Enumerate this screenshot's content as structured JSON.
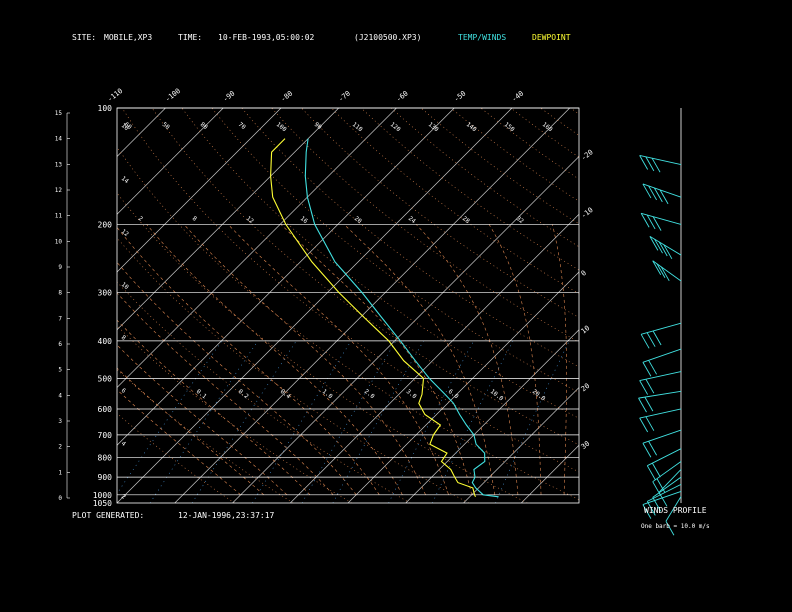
{
  "header": {
    "site_label": "SITE:",
    "site_value": "MOBILE,XP3",
    "time_label": "TIME:",
    "time_value": "10-FEB-1993,05:00:02",
    "file": "(J2100500.XP3)",
    "legend_temp": "TEMP/WINDS",
    "legend_dew": "DEWPOINT"
  },
  "footer": {
    "generated_label": "PLOT GENERATED:",
    "generated_value": "12-JAN-1996,23:37:17",
    "winds_title": "WINDS PROFILE",
    "winds_scale": "One barb = 10.0 m/s"
  },
  "colors": {
    "temp": "#40e0e0",
    "dew": "#ffff33",
    "grid": "#ffffff",
    "isotherm": "#c8c8c8",
    "dry_adiabat": "#e08850",
    "moist_adiabat": "#e08850",
    "mixing_ratio": "#4a9be0",
    "barb": "#40e0e0"
  },
  "chart_data": {
    "type": "line",
    "chart_kind": "skew-T log-P diagram",
    "pressure_ticks": [
      {
        "p": 100,
        "label": "100"
      },
      {
        "p": 200,
        "label": "200"
      },
      {
        "p": 300,
        "label": "300"
      },
      {
        "p": 400,
        "label": "400"
      },
      {
        "p": 500,
        "label": "500"
      },
      {
        "p": 600,
        "label": "600"
      },
      {
        "p": 700,
        "label": "700"
      },
      {
        "p": 800,
        "label": "800"
      },
      {
        "p": 900,
        "label": "900"
      },
      {
        "p": 1000,
        "label": "1000"
      },
      {
        "p": 1050,
        "label": "1050"
      }
    ],
    "height_ticks": [
      "0",
      "1",
      "2",
      "3",
      "4",
      "5",
      "6",
      "7",
      "8",
      "9",
      "10",
      "11",
      "12",
      "13",
      "14",
      "15"
    ],
    "top_temp_labels": [
      "-110",
      "-100",
      "-90",
      "-80",
      "-70",
      "-60",
      "-50",
      "-40"
    ],
    "right_temp_labels": [
      "-30",
      "-20",
      "-10",
      "0",
      "10",
      "20",
      "30"
    ],
    "dry_adiabat_labels": [
      "60",
      "50",
      "80",
      "70",
      "100",
      "90",
      "110",
      "120",
      "130",
      "140",
      "150",
      "160"
    ],
    "moist_adiabat_labels": [
      "2",
      "8",
      "12",
      "16",
      "20",
      "24",
      "28",
      "32"
    ],
    "mixing_ratio_labels": [
      "0.1",
      "0.2",
      "0.4",
      "1.0",
      "2.0",
      "3.0",
      "6.0",
      "10.0",
      "20.0"
    ],
    "height_side_labels": [
      "16",
      "14",
      "12",
      "10",
      "8",
      "6",
      "4",
      "2"
    ],
    "temperature_profile": [
      {
        "p": 1012,
        "t": 25.0
      },
      {
        "p": 1000,
        "t": 22.0
      },
      {
        "p": 960,
        "t": 19.5
      },
      {
        "p": 930,
        "t": 18.0
      },
      {
        "p": 900,
        "t": 17.5
      },
      {
        "p": 860,
        "t": 16.0
      },
      {
        "p": 820,
        "t": 16.5
      },
      {
        "p": 780,
        "t": 15.0
      },
      {
        "p": 740,
        "t": 12.0
      },
      {
        "p": 700,
        "t": 10.0
      },
      {
        "p": 660,
        "t": 7.0
      },
      {
        "p": 620,
        "t": 4.0
      },
      {
        "p": 580,
        "t": 1.0
      },
      {
        "p": 550,
        "t": -2.0
      },
      {
        "p": 500,
        "t": -7.5
      },
      {
        "p": 450,
        "t": -13.0
      },
      {
        "p": 400,
        "t": -19.0
      },
      {
        "p": 350,
        "t": -26.0
      },
      {
        "p": 300,
        "t": -34.0
      },
      {
        "p": 250,
        "t": -44.0
      },
      {
        "p": 200,
        "t": -54.0
      },
      {
        "p": 170,
        "t": -60.0
      },
      {
        "p": 150,
        "t": -64.0
      },
      {
        "p": 130,
        "t": -68.0
      },
      {
        "p": 120,
        "t": -70.0
      }
    ],
    "dewpoint_profile": [
      {
        "p": 1012,
        "t": 21.0
      },
      {
        "p": 1000,
        "t": 20.5
      },
      {
        "p": 960,
        "t": 19.0
      },
      {
        "p": 930,
        "t": 15.5
      },
      {
        "p": 900,
        "t": 14.0
      },
      {
        "p": 860,
        "t": 12.0
      },
      {
        "p": 820,
        "t": 9.0
      },
      {
        "p": 780,
        "t": 8.5
      },
      {
        "p": 740,
        "t": 4.0
      },
      {
        "p": 700,
        "t": 3.0
      },
      {
        "p": 660,
        "t": 2.5
      },
      {
        "p": 620,
        "t": -2.0
      },
      {
        "p": 580,
        "t": -5.0
      },
      {
        "p": 550,
        "t": -6.0
      },
      {
        "p": 500,
        "t": -8.5
      },
      {
        "p": 450,
        "t": -15.0
      },
      {
        "p": 400,
        "t": -21.0
      },
      {
        "p": 350,
        "t": -29.0
      },
      {
        "p": 300,
        "t": -38.0
      },
      {
        "p": 250,
        "t": -48.0
      },
      {
        "p": 200,
        "t": -59.0
      },
      {
        "p": 170,
        "t": -66.0
      },
      {
        "p": 150,
        "t": -70.0
      },
      {
        "p": 130,
        "t": -74.0
      },
      {
        "p": 120,
        "t": -74.0
      }
    ],
    "wind_profile": [
      {
        "p": 140,
        "speed": 25,
        "dir": 290
      },
      {
        "p": 170,
        "speed": 35,
        "dir": 300
      },
      {
        "p": 200,
        "speed": 30,
        "dir": 295
      },
      {
        "p": 240,
        "speed": 40,
        "dir": 315
      },
      {
        "p": 280,
        "speed": 25,
        "dir": 320
      },
      {
        "p": 360,
        "speed": 25,
        "dir": 245
      },
      {
        "p": 420,
        "speed": 20,
        "dir": 240
      },
      {
        "p": 480,
        "speed": 20,
        "dir": 250
      },
      {
        "p": 540,
        "speed": 20,
        "dir": 255
      },
      {
        "p": 600,
        "speed": 20,
        "dir": 250
      },
      {
        "p": 680,
        "speed": 20,
        "dir": 240
      },
      {
        "p": 760,
        "speed": 15,
        "dir": 230
      },
      {
        "p": 820,
        "speed": 15,
        "dir": 220
      },
      {
        "p": 860,
        "speed": 10,
        "dir": 210
      },
      {
        "p": 900,
        "speed": 10,
        "dir": 220
      },
      {
        "p": 940,
        "speed": 10,
        "dir": 230
      },
      {
        "p": 980,
        "speed": 10,
        "dir": 240
      },
      {
        "p": 1010,
        "speed": 5,
        "dir": 200
      }
    ],
    "axes": {
      "p_range": [
        100,
        1050
      ],
      "t_range_bottom": [
        -40,
        40
      ]
    }
  }
}
